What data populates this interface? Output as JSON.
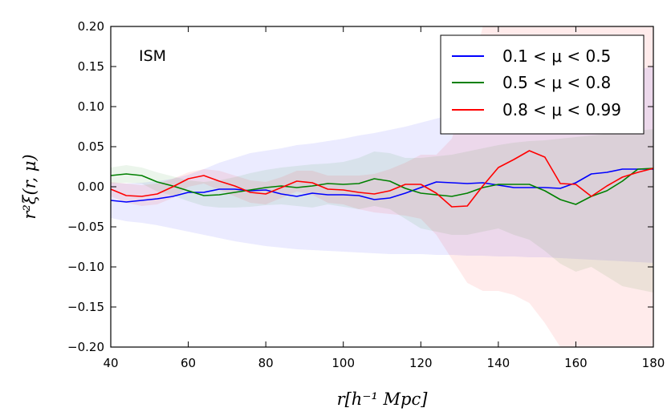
{
  "chart_data": {
    "type": "line",
    "title": "",
    "annotation": "ISM",
    "xlabel": "r[h⁻¹ Mpc]",
    "ylabel": "r²ξ(r, μ)",
    "xlim": [
      40,
      180
    ],
    "ylim": [
      -0.2,
      0.2
    ],
    "xticks": [
      "40",
      "60",
      "80",
      "100",
      "120",
      "140",
      "160",
      "180"
    ],
    "yticks": [
      "−0.20",
      "−0.15",
      "−0.10",
      "−0.05",
      "0.00",
      "0.05",
      "0.10",
      "0.15",
      "0.20"
    ],
    "legend_position": "top-right",
    "x": [
      40,
      44,
      48,
      52,
      56,
      60,
      64,
      68,
      72,
      76,
      80,
      84,
      88,
      92,
      96,
      100,
      104,
      108,
      112,
      116,
      120,
      124,
      128,
      132,
      136,
      140,
      144,
      148,
      152,
      156,
      160,
      164,
      168,
      172,
      176,
      180
    ],
    "series": [
      {
        "name": "0.1 < μ < 0.5",
        "color": "#0000ff",
        "values": [
          -0.017,
          -0.019,
          -0.017,
          -0.015,
          -0.012,
          -0.007,
          -0.007,
          -0.003,
          -0.003,
          -0.005,
          -0.004,
          -0.009,
          -0.012,
          -0.008,
          -0.01,
          -0.01,
          -0.011,
          -0.016,
          -0.014,
          -0.008,
          -0.001,
          0.006,
          0.005,
          0.004,
          0.005,
          0.002,
          -0.001,
          -0.001,
          -0.001,
          -0.002,
          0.005,
          0.016,
          0.018,
          0.022,
          0.022,
          0.022
        ],
        "band_upper": [
          0.005,
          0.004,
          0.005,
          0.007,
          0.01,
          0.015,
          0.022,
          0.03,
          0.036,
          0.042,
          0.045,
          0.048,
          0.052,
          0.054,
          0.057,
          0.06,
          0.064,
          0.067,
          0.071,
          0.075,
          0.08,
          0.085,
          0.09,
          0.094,
          0.099,
          0.104,
          0.108,
          0.113,
          0.118,
          0.122,
          0.127,
          0.132,
          0.137,
          0.141,
          0.146,
          0.15
        ],
        "band_lower": [
          -0.039,
          -0.043,
          -0.045,
          -0.048,
          -0.052,
          -0.056,
          -0.06,
          -0.064,
          -0.068,
          -0.071,
          -0.074,
          -0.076,
          -0.078,
          -0.079,
          -0.08,
          -0.081,
          -0.082,
          -0.083,
          -0.084,
          -0.084,
          -0.084,
          -0.085,
          -0.085,
          -0.086,
          -0.086,
          -0.087,
          -0.087,
          -0.088,
          -0.088,
          -0.089,
          -0.09,
          -0.091,
          -0.092,
          -0.093,
          -0.094,
          -0.095
        ]
      },
      {
        "name": "0.5 < μ < 0.8",
        "color": "#008000",
        "values": [
          0.014,
          0.016,
          0.014,
          0.006,
          0.001,
          -0.005,
          -0.011,
          -0.01,
          -0.007,
          -0.004,
          -0.001,
          0.001,
          -0.001,
          0.001,
          0.004,
          0.003,
          0.004,
          0.01,
          0.007,
          -0.002,
          -0.008,
          -0.01,
          -0.012,
          -0.008,
          -0.001,
          0.003,
          0.003,
          0.003,
          -0.005,
          -0.016,
          -0.022,
          -0.012,
          -0.005,
          0.007,
          0.022,
          0.023
        ],
        "band_upper": [
          0.024,
          0.027,
          0.024,
          0.018,
          0.013,
          0.008,
          0.006,
          0.008,
          0.012,
          0.017,
          0.021,
          0.024,
          0.026,
          0.028,
          0.029,
          0.031,
          0.036,
          0.044,
          0.042,
          0.036,
          0.036,
          0.038,
          0.04,
          0.044,
          0.048,
          0.052,
          0.055,
          0.057,
          0.058,
          0.06,
          0.062,
          0.064,
          0.066,
          0.068,
          0.07,
          0.072
        ],
        "band_lower": [
          0.004,
          0.005,
          0.004,
          -0.006,
          -0.011,
          -0.018,
          -0.024,
          -0.026,
          -0.026,
          -0.025,
          -0.023,
          -0.022,
          -0.024,
          -0.026,
          -0.022,
          -0.025,
          -0.028,
          -0.024,
          -0.028,
          -0.04,
          -0.052,
          -0.056,
          -0.06,
          -0.06,
          -0.056,
          -0.052,
          -0.06,
          -0.066,
          -0.08,
          -0.096,
          -0.106,
          -0.1,
          -0.112,
          -0.124,
          -0.128,
          -0.132
        ]
      },
      {
        "name": "0.8 < μ < 0.99",
        "color": "#ff0000",
        "values": [
          -0.003,
          -0.011,
          -0.012,
          -0.009,
          0.0,
          0.01,
          0.014,
          0.007,
          0.001,
          -0.007,
          -0.009,
          -0.001,
          0.007,
          0.005,
          -0.003,
          -0.004,
          -0.007,
          -0.009,
          -0.005,
          0.003,
          0.003,
          -0.008,
          -0.025,
          -0.024,
          0.001,
          0.024,
          0.034,
          0.045,
          0.037,
          0.004,
          0.003,
          -0.012,
          0.001,
          0.012,
          0.018,
          0.023
        ],
        "band_upper": [
          0.006,
          0.004,
          0.002,
          0.004,
          0.01,
          0.018,
          0.022,
          0.02,
          0.014,
          0.008,
          0.006,
          0.012,
          0.02,
          0.02,
          0.014,
          0.014,
          0.014,
          0.016,
          0.022,
          0.03,
          0.04,
          0.04,
          0.06,
          0.12,
          0.2,
          0.2,
          0.2,
          0.2,
          0.2,
          0.2,
          0.2,
          0.2,
          0.2,
          0.2,
          0.2,
          0.2
        ],
        "band_lower": [
          -0.012,
          -0.02,
          -0.024,
          -0.022,
          -0.014,
          0.0,
          0.004,
          -0.004,
          -0.012,
          -0.02,
          -0.022,
          -0.014,
          -0.006,
          -0.01,
          -0.02,
          -0.022,
          -0.028,
          -0.032,
          -0.034,
          -0.036,
          -0.04,
          -0.06,
          -0.09,
          -0.12,
          -0.13,
          -0.13,
          -0.135,
          -0.145,
          -0.17,
          -0.2,
          -0.2,
          -0.2,
          -0.2,
          -0.2,
          -0.2,
          -0.2
        ]
      }
    ]
  }
}
